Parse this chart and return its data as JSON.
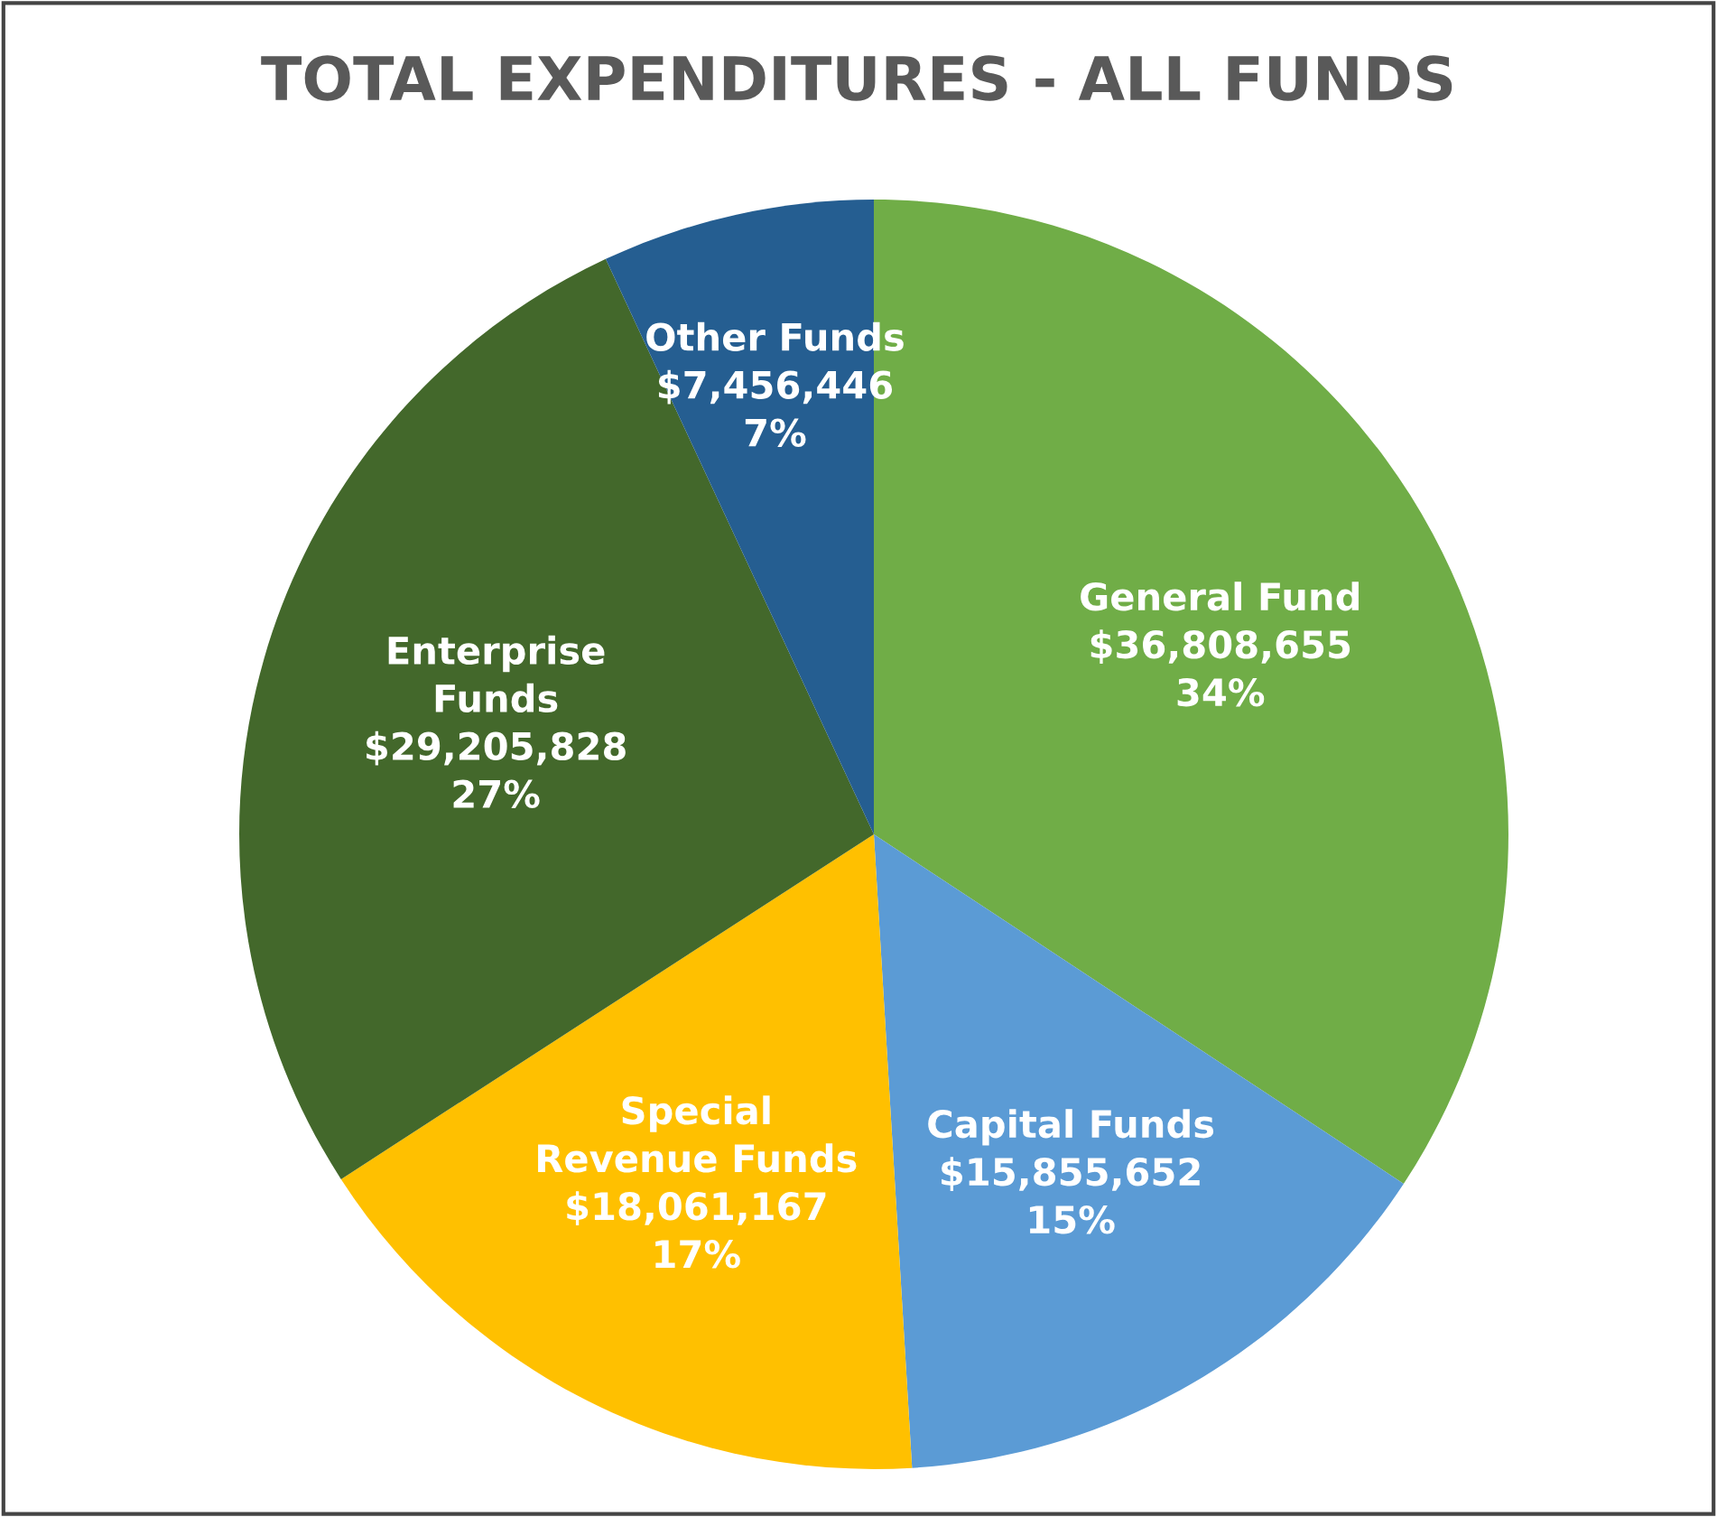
{
  "chart_data": {
    "type": "pie",
    "title": "TOTAL EXPENDITURES - ALL FUNDS",
    "categories": [
      "General Fund",
      "Capital Funds",
      "Special Revenue Funds",
      "Enterprise Funds",
      "Other Funds"
    ],
    "values": [
      36808655,
      15855652,
      18061167,
      29205828,
      7456446
    ],
    "colors": [
      "#70ad47",
      "#5b9bd5",
      "#ffc000",
      "#43682b",
      "#255e91"
    ],
    "value_labels": [
      "$36,808,655\n34%",
      "$15,855,652\n15%",
      "$18,061,167\n17%",
      "$29,205,828\n27%",
      "$7,456,446\n7%"
    ],
    "legend": false
  }
}
